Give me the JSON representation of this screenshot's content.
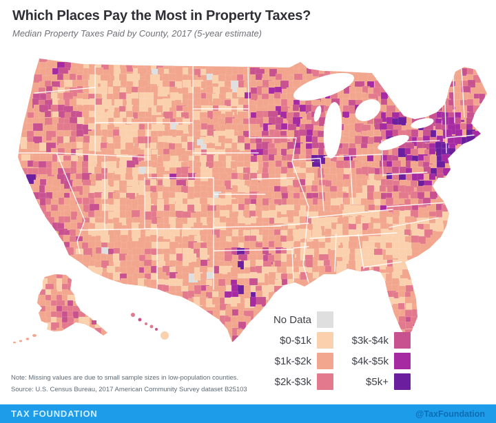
{
  "header": {
    "title": "Which Places Pay the Most in Property Taxes?",
    "subtitle": "Median Property Taxes Paid by County, 2017 (5-year estimate)"
  },
  "legend": {
    "no_data": {
      "label": "No Data",
      "color": "#DFDFDF"
    },
    "bins": [
      {
        "key": "b0",
        "label": "$0-$1k",
        "color": "#FAD0AD"
      },
      {
        "key": "b1",
        "label": "$1k-$2k",
        "color": "#F2A68D"
      },
      {
        "key": "b2",
        "label": "$2k-$3k",
        "color": "#E3798C"
      },
      {
        "key": "b3",
        "label": "$3k-$4k",
        "color": "#C85190"
      },
      {
        "key": "b4",
        "label": "$4k-$5k",
        "color": "#A62AA2"
      },
      {
        "key": "b5",
        "label": "$5k+",
        "color": "#6B1F9E"
      }
    ]
  },
  "notes": {
    "note": "Note: Missing values are due to small sample sizes in low-population counties.",
    "source": "Source: U.S. Census Bureau, 2017 American Community Survey dataset B25103"
  },
  "footer": {
    "brand": "TAX FOUNDATION",
    "handle": "@TaxFoundation",
    "bg": "#1D9DE9"
  },
  "chart_data": {
    "type": "heatmap",
    "title": "Which Places Pay the Most in Property Taxes?",
    "subtitle": "Median Property Taxes Paid by County, 2017 (5-year estimate)",
    "geography": "United States counties (contiguous US with Alaska and Hawaii insets)",
    "legend_position": "bottom-right inside map",
    "bins": [
      {
        "label": "No Data",
        "color": "#DFDFDF"
      },
      {
        "label": "$0-$1k",
        "color": "#FAD0AD"
      },
      {
        "label": "$1k-$2k",
        "color": "#F2A68D"
      },
      {
        "label": "$2k-$3k",
        "color": "#E3798C"
      },
      {
        "label": "$3k-$4k",
        "color": "#C85190"
      },
      {
        "label": "$4k-$5k",
        "color": "#A62AA2"
      },
      {
        "label": "$5k+",
        "color": "#6B1F9E"
      }
    ],
    "regional_pattern": [
      {
        "region": "Northeast corridor: New Jersey, NYC metro, Connecticut, Massachusetts, southern New Hampshire",
        "bin": "$5k+"
      },
      {
        "region": "Washington DC metro / Philadelphia",
        "bin": "$4k-$5k to $5k+"
      },
      {
        "region": "Chicago metro (northeast Illinois)",
        "bin": "$5k+"
      },
      {
        "region": "Seattle metro",
        "bin": "$4k-$5k"
      },
      {
        "region": "San Francisco Bay Area",
        "bin": "$5k+"
      },
      {
        "region": "Coastal California and Los Angeles",
        "bin": "$3k-$4k"
      },
      {
        "region": "Texas metros (Dallas, Austin, Houston, San Antonio)",
        "bin": "$4k-$5k to $5k+"
      },
      {
        "region": "Wisconsin, Twin Cities, Detroit, Denver",
        "bin": "$3k-$4k to $4k-$5k"
      },
      {
        "region": "Deep South, Appalachia, Oklahoma / Arkansas",
        "bin": "$0-$1k"
      },
      {
        "region": "Great Plains and Mountain West",
        "bin": "$0-$1k to $2k-$3k"
      },
      {
        "region": "South Florida",
        "bin": "$2k-$3k"
      },
      {
        "region": "Scattered low-population Mountain West counties",
        "bin": "No Data"
      }
    ]
  }
}
